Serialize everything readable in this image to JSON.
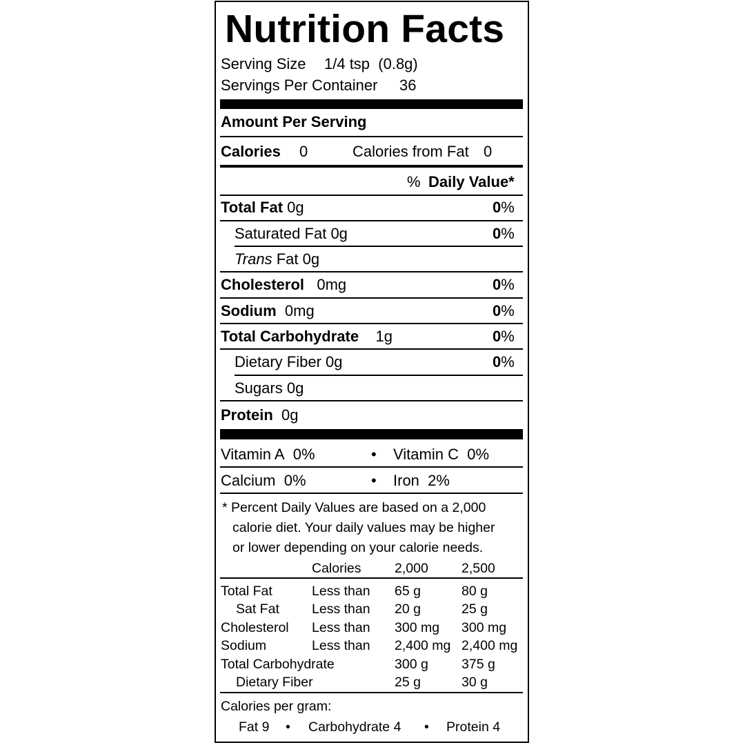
{
  "title": "Nutrition Facts",
  "serving": {
    "size_label": "Serving Size",
    "size_value": "1/4 tsp  (0.8g)",
    "per_container_label": "Servings Per Container",
    "per_container_value": "36"
  },
  "amount_per_serving": "Amount Per Serving",
  "calories": {
    "label": "Calories",
    "value": "0",
    "from_fat_label": "Calories from Fat",
    "from_fat_value": "0"
  },
  "dv_header": {
    "pct": "%",
    "label": "Daily Value*"
  },
  "nutrients": [
    {
      "name": "Total Fat",
      "amount": "0g",
      "dv": "0",
      "pct": "%"
    },
    {
      "name": "Saturated Fat",
      "amount": "0g",
      "dv": "0",
      "pct": "%"
    },
    {
      "name": "Trans",
      "suffix": "Fat",
      "amount": "0g"
    },
    {
      "name": "Cholesterol",
      "amount": "0mg",
      "dv": "0",
      "pct": "%"
    },
    {
      "name": "Sodium",
      "amount": "0mg",
      "dv": "0",
      "pct": "%"
    },
    {
      "name": "Total Carbohydrate",
      "amount": "1g",
      "dv": "0",
      "pct": "%"
    },
    {
      "name": "Dietary Fiber",
      "amount": "0g",
      "dv": "0",
      "pct": "%"
    },
    {
      "name": "Sugars",
      "amount": "0g"
    },
    {
      "name": "Protein",
      "amount": "0g"
    }
  ],
  "vitamins": [
    {
      "name": "Vitamin A",
      "value": "0%"
    },
    {
      "name": "Vitamin C",
      "value": "0%"
    },
    {
      "name": "Calcium",
      "value": "0%"
    },
    {
      "name": "Iron",
      "value": "2%"
    }
  ],
  "bullet": "•",
  "footnote": [
    "* Percent Daily Values are based on a 2,000",
    "calorie diet. Your daily values may be higher",
    "or lower depending on your calorie needs."
  ],
  "reference_table": {
    "header": [
      "",
      "Calories",
      "2,000",
      "2,500"
    ],
    "rows": [
      [
        "Total Fat",
        "Less than",
        "65 g",
        "80 g"
      ],
      [
        "Sat Fat",
        "Less than",
        "20 g",
        "25 g"
      ],
      [
        "Cholesterol",
        "Less than",
        "300 mg",
        "300 mg"
      ],
      [
        "Sodium",
        "Less than",
        "2,400 mg",
        "2,400 mg"
      ],
      [
        "Total Carbohydrate",
        "",
        "300 g",
        "375 g"
      ],
      [
        "Dietary Fiber",
        "",
        "25 g",
        "30 g"
      ]
    ]
  },
  "calories_per_gram": {
    "label": "Calories per gram:",
    "fat": "Fat 9",
    "carbohydrate": "Carbohydrate 4",
    "protein": "Protein 4"
  }
}
